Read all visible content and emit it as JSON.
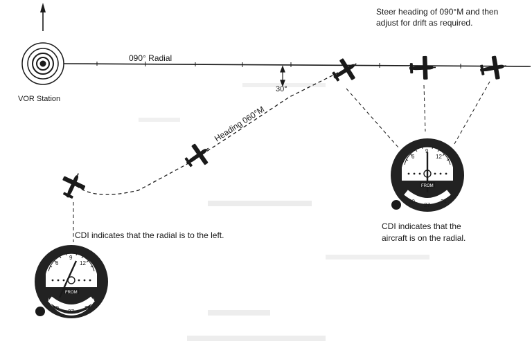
{
  "labels": {
    "steer_line1": "Steer heading of 090°M and then",
    "steer_line2": "adjust for drift as required.",
    "radial": "090° Radial",
    "angle": "30°",
    "heading": "Heading 060°M",
    "vor": "VOR Station",
    "cdi_left": "CDI indicates that the radial is to the left.",
    "cdi_on_line1": "CDI indicates that the",
    "cdi_on_line2": "aircraft is on the radial."
  },
  "instrument_left": {
    "from_label": "FROM",
    "card": {
      "n30": "30",
      "n27": "27",
      "n24": "24",
      "n9": "9",
      "n6": "6",
      "n12": "12"
    }
  },
  "instrument_right": {
    "from_label": "FROM",
    "card": {
      "n30": "30",
      "n27": "27",
      "n24": "24",
      "n9": "9",
      "n6": "6",
      "n12": "12"
    }
  },
  "colors": {
    "ink": "#1a1a1a",
    "face": "#222222",
    "paper": "#ffffff"
  }
}
